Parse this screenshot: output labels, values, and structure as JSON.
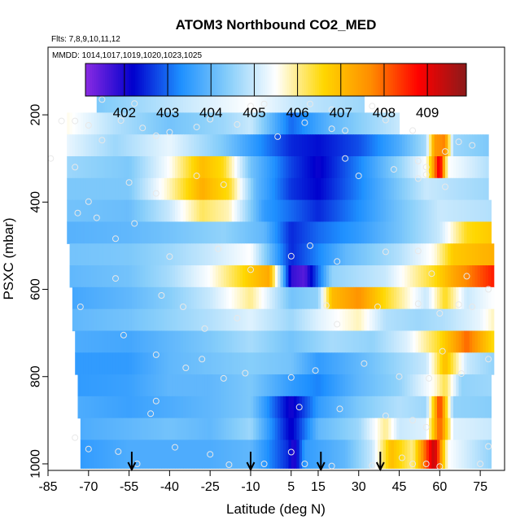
{
  "chart_data": {
    "type": "heatmap",
    "title": "ATOM3 Northbound CO2_MED",
    "notes": [
      "Flts: 7,8,9,10,11,12",
      "MMDD: 1014,1017,1019,1020,1023,1025"
    ],
    "xlabel": "Latitude (deg N)",
    "ylabel": "PSXC (mbar)",
    "xlim": [
      -85,
      84
    ],
    "ylim": [
      1015,
      45
    ],
    "x_ticks": [
      -85,
      -70,
      -55,
      -40,
      -25,
      -10,
      5,
      15,
      30,
      45,
      60,
      75
    ],
    "y_ticks": [
      200,
      400,
      600,
      800,
      1000
    ],
    "colorbar": {
      "range": [
        401.1,
        409.9
      ],
      "ticks": [
        402,
        403,
        404,
        405,
        406,
        407,
        408,
        409
      ],
      "colors": [
        "#8a2be2",
        "#0000cd",
        "#1e90ff",
        "#87cefa",
        "#ffffff",
        "#ffd700",
        "#ff8c00",
        "#ff0000",
        "#8b1a1a"
      ]
    },
    "sample_levels": [
      170,
      220,
      270,
      320,
      370,
      420,
      470,
      520,
      570,
      620,
      670,
      720,
      770,
      820,
      870,
      920,
      970
    ],
    "bands": [
      {
        "p": 170,
        "x0": -67,
        "x1": 32,
        "nodes": [
          [
            -67,
            404.3
          ],
          [
            -10,
            405.5
          ],
          [
            5,
            405
          ],
          [
            32,
            404.6
          ]
        ]
      },
      {
        "p": 220,
        "x0": -78,
        "x1": 45,
        "nodes": [
          [
            -78,
            405.6
          ],
          [
            -60,
            404.8
          ],
          [
            -40,
            404.2
          ],
          [
            -20,
            404.6
          ],
          [
            -10,
            405
          ],
          [
            5,
            403
          ],
          [
            20,
            404
          ],
          [
            45,
            405
          ]
        ]
      },
      {
        "p": 270,
        "x0": -78,
        "x1": 78,
        "nodes": [
          [
            -78,
            405.3
          ],
          [
            -60,
            404.6
          ],
          [
            -40,
            405.3
          ],
          [
            -20,
            404.3
          ],
          [
            -5,
            403.2
          ],
          [
            5,
            402.5
          ],
          [
            15,
            402.3
          ],
          [
            30,
            402.8
          ],
          [
            45,
            403.8
          ],
          [
            55,
            404.7
          ],
          [
            58,
            407.5
          ],
          [
            62,
            407.8
          ],
          [
            65,
            404.6
          ],
          [
            78,
            404.3
          ]
        ]
      },
      {
        "p": 320,
        "x0": -78,
        "x1": 78,
        "nodes": [
          [
            -78,
            404.6
          ],
          [
            -55,
            404.3
          ],
          [
            -40,
            405.5
          ],
          [
            -28,
            407
          ],
          [
            -20,
            406.5
          ],
          [
            -10,
            404.2
          ],
          [
            5,
            402.7
          ],
          [
            15,
            402.1
          ],
          [
            30,
            403.2
          ],
          [
            45,
            404.5
          ],
          [
            55,
            405.5
          ],
          [
            60,
            409.2
          ],
          [
            63,
            405.5
          ],
          [
            78,
            404.8
          ]
        ]
      },
      {
        "p": 370,
        "x0": -78,
        "x1": 78,
        "nodes": [
          [
            -78,
            404.3
          ],
          [
            -55,
            404.3
          ],
          [
            -40,
            405.8
          ],
          [
            -28,
            407.2
          ],
          [
            -18,
            406.5
          ],
          [
            -8,
            404
          ],
          [
            5,
            402.6
          ],
          [
            15,
            402.2
          ],
          [
            30,
            403.2
          ],
          [
            45,
            404.3
          ],
          [
            55,
            405
          ],
          [
            65,
            404.8
          ],
          [
            78,
            404.6
          ]
        ]
      },
      {
        "p": 420,
        "x0": -78,
        "x1": 79,
        "nodes": [
          [
            -78,
            404.2
          ],
          [
            -55,
            404.1
          ],
          [
            -40,
            405
          ],
          [
            -28,
            406.2
          ],
          [
            -18,
            405.8
          ],
          [
            -5,
            403.5
          ],
          [
            5,
            403
          ],
          [
            15,
            402.5
          ],
          [
            30,
            403.3
          ],
          [
            45,
            404.2
          ],
          [
            60,
            405
          ],
          [
            79,
            404.8
          ]
        ]
      },
      {
        "p": 470,
        "x0": -78,
        "x1": 79,
        "nodes": [
          [
            -78,
            403.9
          ],
          [
            -55,
            404
          ],
          [
            -40,
            404.2
          ],
          [
            -20,
            404.5
          ],
          [
            -5,
            404
          ],
          [
            5,
            402.5
          ],
          [
            15,
            403
          ],
          [
            30,
            403.5
          ],
          [
            45,
            404.2
          ],
          [
            60,
            405
          ],
          [
            70,
            406.5
          ],
          [
            79,
            406.8
          ]
        ]
      },
      {
        "p": 520,
        "x0": -77,
        "x1": 80,
        "nodes": [
          [
            -77,
            404.2
          ],
          [
            -55,
            404.3
          ],
          [
            -40,
            404.6
          ],
          [
            -25,
            405
          ],
          [
            -10,
            405.5
          ],
          [
            5,
            402.5
          ],
          [
            12,
            403
          ],
          [
            25,
            404
          ],
          [
            45,
            404.8
          ],
          [
            58,
            405.6
          ],
          [
            65,
            406.8
          ],
          [
            80,
            407.2
          ]
        ]
      },
      {
        "p": 570,
        "x0": -77,
        "x1": 80,
        "nodes": [
          [
            -77,
            404
          ],
          [
            -55,
            404.2
          ],
          [
            -40,
            404.7
          ],
          [
            -25,
            405.5
          ],
          [
            -10,
            406.8
          ],
          [
            -3,
            407.3
          ],
          [
            5,
            401.8
          ],
          [
            10,
            401.5
          ],
          [
            20,
            404.5
          ],
          [
            40,
            405
          ],
          [
            58,
            406.5
          ],
          [
            65,
            407.3
          ],
          [
            80,
            408.6
          ]
        ]
      },
      {
        "p": 620,
        "x0": -76,
        "x1": 80,
        "nodes": [
          [
            -76,
            403.7
          ],
          [
            -55,
            404
          ],
          [
            -40,
            404.4
          ],
          [
            -25,
            405
          ],
          [
            -10,
            406
          ],
          [
            5,
            404.2
          ],
          [
            15,
            404.5
          ],
          [
            20,
            407
          ],
          [
            30,
            407.6
          ],
          [
            40,
            406.5
          ],
          [
            55,
            405
          ],
          [
            62,
            406.5
          ],
          [
            70,
            405
          ],
          [
            80,
            405.5
          ]
        ]
      },
      {
        "p": 670,
        "x0": -76,
        "x1": 80,
        "nodes": [
          [
            -76,
            404
          ],
          [
            -55,
            404.2
          ],
          [
            -40,
            404.5
          ],
          [
            -25,
            404.8
          ],
          [
            -10,
            405.2
          ],
          [
            5,
            404.6
          ],
          [
            15,
            405.2
          ],
          [
            30,
            405.8
          ],
          [
            40,
            404.8
          ],
          [
            52,
            404.6
          ],
          [
            62,
            404.8
          ],
          [
            75,
            405.3
          ],
          [
            80,
            405.8
          ]
        ]
      },
      {
        "p": 720,
        "x0": -75,
        "x1": 80,
        "nodes": [
          [
            -75,
            403.8
          ],
          [
            -55,
            403.7
          ],
          [
            -40,
            404
          ],
          [
            -25,
            404.3
          ],
          [
            -10,
            404.7
          ],
          [
            5,
            404.2
          ],
          [
            20,
            404.7
          ],
          [
            35,
            404.5
          ],
          [
            48,
            405.2
          ],
          [
            60,
            406.5
          ],
          [
            70,
            408
          ],
          [
            80,
            406.5
          ]
        ]
      },
      {
        "p": 770,
        "x0": -75,
        "x1": 80,
        "nodes": [
          [
            -75,
            403.5
          ],
          [
            -55,
            403.5
          ],
          [
            -40,
            404
          ],
          [
            -25,
            404.2
          ],
          [
            -10,
            404.4
          ],
          [
            5,
            404.2
          ],
          [
            15,
            403.5
          ],
          [
            30,
            404
          ],
          [
            45,
            404.6
          ],
          [
            55,
            405
          ],
          [
            62,
            407
          ],
          [
            70,
            405
          ],
          [
            80,
            404.5
          ]
        ]
      },
      {
        "p": 820,
        "x0": -74,
        "x1": 79,
        "nodes": [
          [
            -74,
            403.5
          ],
          [
            -55,
            403.6
          ],
          [
            -40,
            404
          ],
          [
            -25,
            404
          ],
          [
            -10,
            404.3
          ],
          [
            5,
            403.5
          ],
          [
            15,
            403.2
          ],
          [
            30,
            404
          ],
          [
            45,
            404.5
          ],
          [
            58,
            405.6
          ],
          [
            62,
            406.3
          ],
          [
            68,
            404.5
          ],
          [
            79,
            404.6
          ]
        ]
      },
      {
        "p": 870,
        "x0": -74,
        "x1": 79,
        "nodes": [
          [
            -74,
            403.8
          ],
          [
            -55,
            403.6
          ],
          [
            -40,
            403.8
          ],
          [
            -25,
            404
          ],
          [
            -10,
            404.3
          ],
          [
            5,
            402
          ],
          [
            15,
            403.5
          ],
          [
            30,
            404.3
          ],
          [
            45,
            404.8
          ],
          [
            55,
            404.6
          ],
          [
            60,
            408.5
          ],
          [
            65,
            404.5
          ],
          [
            79,
            404.4
          ]
        ]
      },
      {
        "p": 920,
        "x0": -73,
        "x1": 79,
        "nodes": [
          [
            -73,
            403.8
          ],
          [
            -55,
            404
          ],
          [
            -40,
            404.2
          ],
          [
            -25,
            404
          ],
          [
            -10,
            404.6
          ],
          [
            5,
            402.1
          ],
          [
            15,
            404
          ],
          [
            30,
            404.6
          ],
          [
            40,
            406
          ],
          [
            45,
            405
          ],
          [
            55,
            405.2
          ],
          [
            60,
            408.2
          ],
          [
            65,
            405.2
          ],
          [
            79,
            405
          ]
        ]
      },
      {
        "p": 970,
        "x0": -73,
        "x1": 79,
        "nodes": [
          [
            -73,
            403.5
          ],
          [
            -55,
            403.8
          ],
          [
            -40,
            403.8
          ],
          [
            -25,
            403.8
          ],
          [
            -10,
            404
          ],
          [
            4,
            402.5
          ],
          [
            6,
            401.8
          ],
          [
            10,
            403.5
          ],
          [
            25,
            404
          ],
          [
            35,
            405
          ],
          [
            42,
            407
          ],
          [
            50,
            406
          ],
          [
            58,
            409.5
          ],
          [
            63,
            405.5
          ],
          [
            79,
            404.5
          ]
        ]
      }
    ],
    "samples": [
      [
        -65,
        165
      ],
      [
        -53,
        174
      ],
      [
        -10,
        180
      ],
      [
        -5,
        175
      ],
      [
        12,
        175
      ],
      [
        20,
        188
      ],
      [
        35,
        180
      ],
      [
        -75,
        214
      ],
      [
        -80,
        214
      ],
      [
        -70,
        224
      ],
      [
        -58,
        213
      ],
      [
        -50,
        230
      ],
      [
        -40,
        240
      ],
      [
        -30,
        228
      ],
      [
        -25,
        210
      ],
      [
        -15,
        222
      ],
      [
        10,
        218
      ],
      [
        20,
        232
      ],
      [
        25,
        236
      ],
      [
        40,
        212
      ],
      [
        50,
        236
      ],
      [
        -65,
        258
      ],
      [
        -45,
        248
      ],
      [
        0,
        250
      ],
      [
        -84,
        300
      ],
      [
        -75,
        320
      ],
      [
        -55,
        355
      ],
      [
        -30,
        340
      ],
      [
        -20,
        360
      ],
      [
        25,
        300
      ],
      [
        30,
        340
      ],
      [
        -45,
        380
      ],
      [
        52,
        306
      ],
      [
        55,
        320
      ],
      [
        62,
        284
      ],
      [
        67,
        262
      ],
      [
        72,
        270
      ],
      [
        43,
        325
      ],
      [
        55,
        337
      ],
      [
        52,
        346
      ],
      [
        62,
        365
      ],
      [
        -70,
        399
      ],
      [
        -74,
        425
      ],
      [
        -67,
        436
      ],
      [
        -60,
        484
      ],
      [
        -53,
        449
      ],
      [
        -40,
        525
      ],
      [
        -22,
        507
      ],
      [
        -10,
        555
      ],
      [
        5,
        524
      ],
      [
        12,
        500
      ],
      [
        22,
        536
      ],
      [
        40,
        514
      ],
      [
        52,
        512
      ],
      [
        57,
        564
      ],
      [
        70,
        570
      ],
      [
        67,
        635
      ],
      [
        -60,
        575
      ],
      [
        -43,
        614
      ],
      [
        -35,
        640
      ],
      [
        -27,
        690
      ],
      [
        -15,
        666
      ],
      [
        18,
        637
      ],
      [
        22,
        680
      ],
      [
        37,
        640
      ],
      [
        52,
        633
      ],
      [
        60,
        655
      ],
      [
        72,
        640
      ],
      [
        78,
        600
      ],
      [
        -73,
        640
      ],
      [
        -57,
        705
      ],
      [
        -45,
        750
      ],
      [
        -34,
        780
      ],
      [
        -28,
        760
      ],
      [
        -20,
        804
      ],
      [
        -12,
        792
      ],
      [
        5,
        802
      ],
      [
        14,
        786
      ],
      [
        32,
        770
      ],
      [
        45,
        800
      ],
      [
        56,
        804
      ],
      [
        61,
        742
      ],
      [
        68,
        793
      ],
      [
        78,
        760
      ],
      [
        -45,
        856
      ],
      [
        -47,
        885
      ],
      [
        8,
        870
      ],
      [
        23,
        874
      ],
      [
        40,
        890
      ],
      [
        50,
        900
      ],
      [
        55,
        916
      ],
      [
        -75,
        940
      ],
      [
        -70,
        966
      ],
      [
        -59,
        972
      ],
      [
        -52,
        1000
      ],
      [
        -38,
        962
      ],
      [
        -25,
        978
      ],
      [
        -18,
        1002
      ],
      [
        -5,
        1000
      ],
      [
        5,
        973
      ],
      [
        10,
        1000
      ],
      [
        20,
        1005
      ],
      [
        35,
        1004
      ],
      [
        46,
        986
      ],
      [
        50,
        1000
      ],
      [
        55,
        1000
      ],
      [
        60,
        1006
      ],
      [
        75,
        1000
      ],
      [
        78,
        960
      ]
    ],
    "arrows": [
      -54,
      -10,
      16,
      38
    ]
  }
}
